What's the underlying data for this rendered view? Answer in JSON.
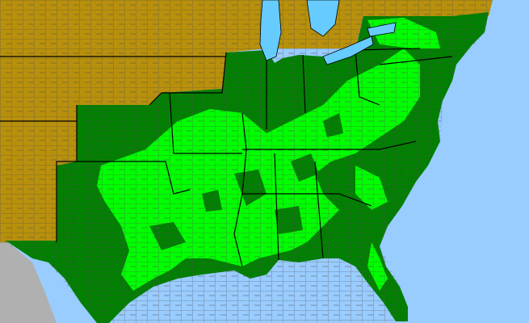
{
  "map": {
    "colors": {
      "water": "#99ccff",
      "not_present": "#b8900b",
      "present": "#007f00",
      "present_highlight": "#00ff00",
      "outside_area": "#b0b0b0",
      "county_border": "#555555",
      "state_border": "#000000"
    },
    "legend": []
  }
}
